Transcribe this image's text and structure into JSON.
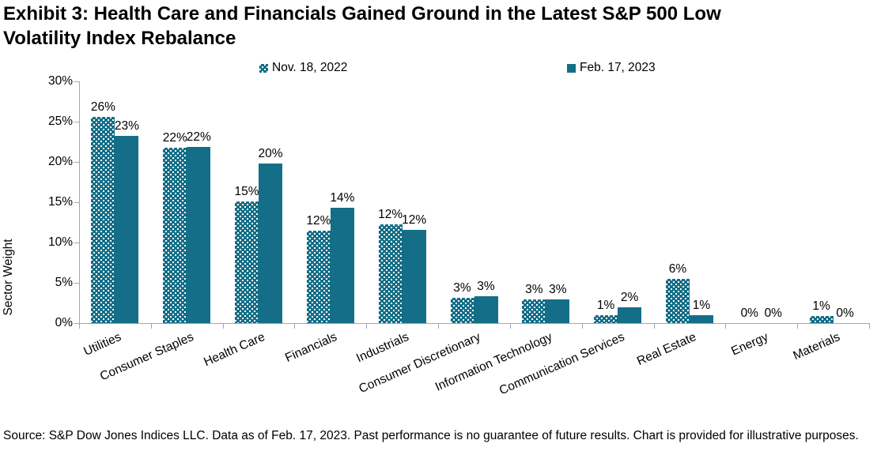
{
  "title_lines": [
    "Exhibit 3: Health Care and Financials Gained Ground in the Latest S&P 500 Low",
    "Volatility Index Rebalance"
  ],
  "legend": [
    {
      "label": "Nov. 18, 2022",
      "swatch": "dots"
    },
    {
      "label": "Feb. 17, 2023",
      "swatch": "solid"
    }
  ],
  "source_note": "Source: S&P Dow Jones Indices LLC. Data as of Feb. 17, 2023. Past performance is no guarantee of future results. Chart is provided for illustrative purposes.",
  "colors": {
    "teal": "#146e87",
    "axis": "#a6a6a6",
    "text": "#000000"
  },
  "chart_data": {
    "type": "bar",
    "ylabel": "Sector Weight",
    "xlabel": "",
    "ylim": [
      0,
      30
    ],
    "ytick_step": 5,
    "ytick_labels": [
      "0%",
      "5%",
      "10%",
      "15%",
      "20%",
      "25%",
      "30%"
    ],
    "grid": false,
    "legend_position": "top",
    "categories": [
      "Utilities",
      "Consumer Staples",
      "Health Care",
      "Financials",
      "Industrials",
      "Consumer Discretionary",
      "Information Technology",
      "Communication Services",
      "Real Estate",
      "Energy",
      "Materials"
    ],
    "series": [
      {
        "name": "Nov. 18, 2022",
        "fill": "dots",
        "values": [
          25.6,
          21.8,
          15.1,
          11.5,
          12.3,
          3.1,
          2.9,
          1.0,
          5.5,
          0,
          0.9
        ],
        "labels": [
          "26%",
          "22%",
          "15%",
          "12%",
          "12%",
          "3%",
          "3%",
          "1%",
          "6%",
          "0%",
          "1%"
        ]
      },
      {
        "name": "Feb. 17, 2023",
        "fill": "solid",
        "values": [
          23.2,
          21.9,
          19.8,
          14.3,
          11.6,
          3.3,
          2.9,
          2.0,
          1.0,
          0,
          0
        ],
        "labels": [
          "23%",
          "22%",
          "20%",
          "14%",
          "12%",
          "3%",
          "3%",
          "2%",
          "1%",
          "0%",
          "0%"
        ]
      }
    ]
  }
}
